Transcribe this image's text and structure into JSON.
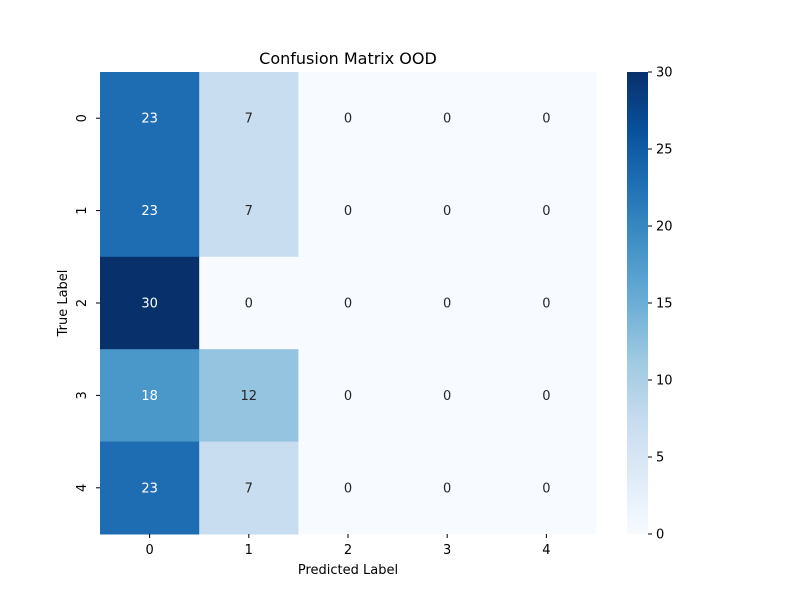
{
  "chart_data": {
    "type": "heatmap",
    "title": "Confusion Matrix OOD",
    "xlabel": "Predicted Label",
    "ylabel": "True Label",
    "x_categories": [
      "0",
      "1",
      "2",
      "3",
      "4"
    ],
    "y_categories": [
      "0",
      "1",
      "2",
      "3",
      "4"
    ],
    "matrix": [
      [
        23,
        7,
        0,
        0,
        0
      ],
      [
        23,
        7,
        0,
        0,
        0
      ],
      [
        30,
        0,
        0,
        0,
        0
      ],
      [
        18,
        12,
        0,
        0,
        0
      ],
      [
        23,
        7,
        0,
        0,
        0
      ]
    ],
    "colorbar": {
      "min": 0,
      "max": 30,
      "ticks": [
        0,
        5,
        10,
        15,
        20,
        25,
        30
      ],
      "colormap": "Blues"
    },
    "annotations": true,
    "grid": false
  }
}
